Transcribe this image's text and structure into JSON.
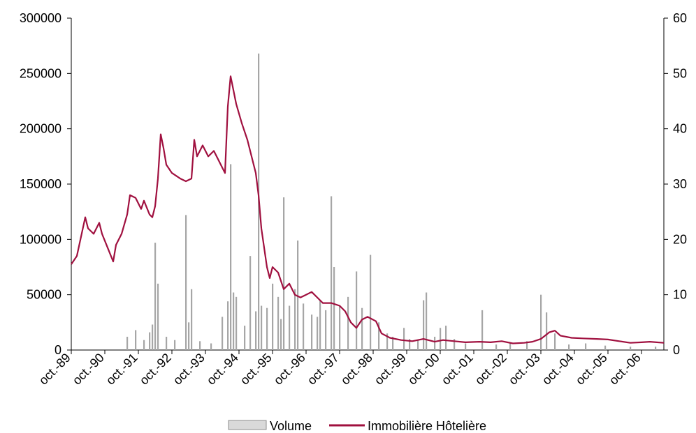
{
  "chart_data": {
    "type": "bar+line",
    "grid": false,
    "legend_position": "bottom",
    "x": {
      "type": "time",
      "range": [
        "1989-10",
        "2007-06"
      ],
      "tick_labels": [
        "oct.-89",
        "oct.-90",
        "oct.-91",
        "oct.-92",
        "oct.-93",
        "oct.-94",
        "oct.-95",
        "oct.-96",
        "oct.-97",
        "oct.-98",
        "oct.-99",
        "oct.-00",
        "oct.-01",
        "oct.-02",
        "oct.-03",
        "oct.-04",
        "oct.-05",
        "oct.-06"
      ]
    },
    "y_left": {
      "ylim": [
        0,
        300000
      ],
      "tick_labels": [
        "0",
        "50000",
        "100000",
        "150000",
        "200000",
        "250000",
        "300000"
      ]
    },
    "y_right": {
      "ylim": [
        0,
        60
      ],
      "tick_labels": [
        "0",
        "10",
        "20",
        "30",
        "40",
        "50",
        "60"
      ]
    },
    "series": [
      {
        "name": "Volume",
        "type": "bar",
        "axis": "left",
        "color": "#a6a6a6",
        "points": [
          [
            "1991-06",
            12000
          ],
          [
            "1991-09",
            18000
          ],
          [
            "1991-12",
            9000
          ],
          [
            "1992-02",
            16000
          ],
          [
            "1992-03",
            23000
          ],
          [
            "1992-04",
            97000
          ],
          [
            "1992-05",
            60000
          ],
          [
            "1992-08",
            12000
          ],
          [
            "1992-11",
            9000
          ],
          [
            "1993-03",
            122000
          ],
          [
            "1993-04",
            25000
          ],
          [
            "1993-05",
            55000
          ],
          [
            "1993-08",
            8000
          ],
          [
            "1993-12",
            6000
          ],
          [
            "1994-04",
            30000
          ],
          [
            "1994-06",
            44000
          ],
          [
            "1994-07",
            168000
          ],
          [
            "1994-08",
            52000
          ],
          [
            "1994-09",
            48000
          ],
          [
            "1994-12",
            22000
          ],
          [
            "1995-02",
            85000
          ],
          [
            "1995-04",
            35000
          ],
          [
            "1995-05",
            268000
          ],
          [
            "1995-06",
            40000
          ],
          [
            "1995-08",
            38000
          ],
          [
            "1995-10",
            60000
          ],
          [
            "1995-12",
            48000
          ],
          [
            "1996-01",
            28000
          ],
          [
            "1996-02",
            138000
          ],
          [
            "1996-04",
            40000
          ],
          [
            "1996-06",
            55000
          ],
          [
            "1996-07",
            99000
          ],
          [
            "1996-09",
            42000
          ],
          [
            "1996-12",
            32000
          ],
          [
            "1997-02",
            30000
          ],
          [
            "1997-03",
            45000
          ],
          [
            "1997-05",
            36000
          ],
          [
            "1997-07",
            139000
          ],
          [
            "1997-08",
            75000
          ],
          [
            "1997-10",
            40000
          ],
          [
            "1998-01",
            48000
          ],
          [
            "1998-04",
            71000
          ],
          [
            "1998-06",
            38000
          ],
          [
            "1998-09",
            86000
          ],
          [
            "1998-12",
            25000
          ],
          [
            "1999-03",
            15000
          ],
          [
            "1999-05",
            12000
          ],
          [
            "1999-09",
            20000
          ],
          [
            "1999-11",
            10000
          ],
          [
            "2000-02",
            9000
          ],
          [
            "2000-04",
            45000
          ],
          [
            "2000-05",
            52000
          ],
          [
            "2000-08",
            12000
          ],
          [
            "2000-10",
            20000
          ],
          [
            "2000-12",
            22000
          ],
          [
            "2001-03",
            10000
          ],
          [
            "2001-07",
            6000
          ],
          [
            "2002-01",
            36000
          ],
          [
            "2002-06",
            5000
          ],
          [
            "2002-11",
            6000
          ],
          [
            "2003-05",
            8000
          ],
          [
            "2003-10",
            50000
          ],
          [
            "2003-12",
            34000
          ],
          [
            "2004-03",
            15000
          ],
          [
            "2004-08",
            5000
          ],
          [
            "2005-02",
            6000
          ],
          [
            "2005-09",
            4000
          ],
          [
            "2006-06",
            3000
          ],
          [
            "2007-03",
            3000
          ]
        ]
      },
      {
        "name": "Immobilière Hôtelière",
        "type": "line",
        "axis": "right",
        "color": "#a0103f",
        "points": [
          [
            "1989-10",
            15.5
          ],
          [
            "1989-12",
            17
          ],
          [
            "1990-03",
            24
          ],
          [
            "1990-04",
            22
          ],
          [
            "1990-06",
            21
          ],
          [
            "1990-08",
            23
          ],
          [
            "1990-09",
            21
          ],
          [
            "1990-11",
            18.5
          ],
          [
            "1991-01",
            16
          ],
          [
            "1991-02",
            19
          ],
          [
            "1991-04",
            21
          ],
          [
            "1991-06",
            24.5
          ],
          [
            "1991-07",
            28
          ],
          [
            "1991-09",
            27.5
          ],
          [
            "1991-11",
            25.5
          ],
          [
            "1991-12",
            27
          ],
          [
            "1992-02",
            24.5
          ],
          [
            "1992-03",
            24
          ],
          [
            "1992-04",
            26
          ],
          [
            "1992-05",
            31
          ],
          [
            "1992-06",
            39
          ],
          [
            "1992-07",
            36.5
          ],
          [
            "1992-08",
            33.5
          ],
          [
            "1992-10",
            32
          ],
          [
            "1993-01",
            31
          ],
          [
            "1993-03",
            30.5
          ],
          [
            "1993-05",
            31
          ],
          [
            "1993-06",
            38
          ],
          [
            "1993-07",
            35
          ],
          [
            "1993-09",
            37
          ],
          [
            "1993-11",
            35
          ],
          [
            "1994-01",
            36
          ],
          [
            "1994-03",
            34
          ],
          [
            "1994-04",
            33
          ],
          [
            "1994-05",
            32
          ],
          [
            "1994-06",
            44
          ],
          [
            "1994-07",
            49.5
          ],
          [
            "1994-08",
            47
          ],
          [
            "1994-09",
            44.5
          ],
          [
            "1994-11",
            41
          ],
          [
            "1995-01",
            38
          ],
          [
            "1995-02",
            36
          ],
          [
            "1995-04",
            32
          ],
          [
            "1995-05",
            28
          ],
          [
            "1995-06",
            22
          ],
          [
            "1995-08",
            15
          ],
          [
            "1995-09",
            13
          ],
          [
            "1995-10",
            15
          ],
          [
            "1995-12",
            14
          ],
          [
            "1996-02",
            11
          ],
          [
            "1996-04",
            12
          ],
          [
            "1996-06",
            10
          ],
          [
            "1996-08",
            9.5
          ],
          [
            "1996-10",
            10
          ],
          [
            "1996-12",
            10.5
          ],
          [
            "1997-02",
            9.5
          ],
          [
            "1997-04",
            8.5
          ],
          [
            "1997-07",
            8.5
          ],
          [
            "1997-10",
            8
          ],
          [
            "1997-12",
            7
          ],
          [
            "1998-02",
            5
          ],
          [
            "1998-04",
            4
          ],
          [
            "1998-06",
            5.5
          ],
          [
            "1998-08",
            6
          ],
          [
            "1998-11",
            5.2
          ],
          [
            "1999-01",
            3
          ],
          [
            "1999-04",
            2.2
          ],
          [
            "1999-08",
            1.8
          ],
          [
            "1999-12",
            1.6
          ],
          [
            "2000-04",
            2
          ],
          [
            "2000-08",
            1.5
          ],
          [
            "2000-11",
            1.8
          ],
          [
            "2001-03",
            1.6
          ],
          [
            "2001-07",
            1.4
          ],
          [
            "2001-12",
            1.5
          ],
          [
            "2002-04",
            1.4
          ],
          [
            "2002-08",
            1.6
          ],
          [
            "2002-12",
            1.2
          ],
          [
            "2003-04",
            1.3
          ],
          [
            "2003-07",
            1.5
          ],
          [
            "2003-10",
            2
          ],
          [
            "2004-01",
            3.2
          ],
          [
            "2004-03",
            3.5
          ],
          [
            "2004-05",
            2.6
          ],
          [
            "2004-09",
            2.2
          ],
          [
            "2005-01",
            2.1
          ],
          [
            "2005-06",
            2
          ],
          [
            "2005-10",
            1.9
          ],
          [
            "2006-02",
            1.6
          ],
          [
            "2006-06",
            1.3
          ],
          [
            "2006-10",
            1.4
          ],
          [
            "2007-01",
            1.5
          ],
          [
            "2007-06",
            1.3
          ]
        ]
      }
    ]
  }
}
